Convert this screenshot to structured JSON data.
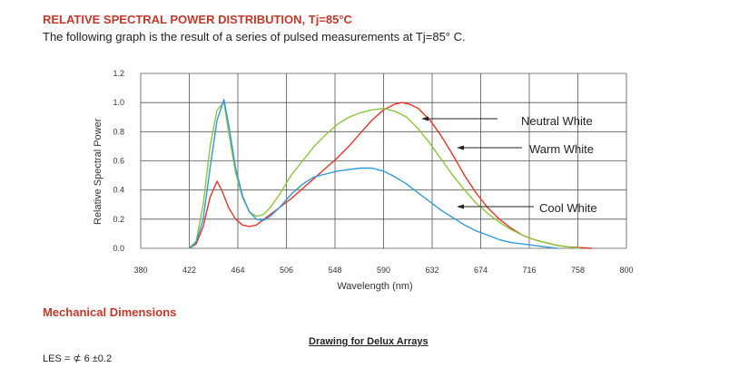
{
  "header": {
    "title": "RELATIVE SPECTRAL POWER DISTRIBUTION, Tj=85°C",
    "subtitle": "The following graph is the result of a series of pulsed measurements at Tj=85° C."
  },
  "footer": {
    "section_title": "Mechanical Dimensions",
    "drawing_label": "Drawing for Delux Arrays",
    "les_label": "LES = ⊄ 6 ±0.2"
  },
  "colors": {
    "neutral_white": "#e8352a",
    "warm_white": "#8cc63f",
    "cool_white": "#2e9bd8",
    "title_red": "#c0392b"
  },
  "chart_data": {
    "type": "line",
    "xlabel": "Wavelength (nm)",
    "ylabel": "Relative Spectral Power",
    "xlim": [
      380,
      800
    ],
    "ylim": [
      0.0,
      1.2
    ],
    "x_ticks": [
      "380",
      "422",
      "464",
      "506",
      "548",
      "590",
      "632",
      "674",
      "716",
      "758",
      "800"
    ],
    "y_ticks": [
      "0.0",
      "0.2",
      "0.4",
      "0.6",
      "0.8",
      "1.0",
      "1.2"
    ],
    "grid": true,
    "series": [
      {
        "name": "Neutral White",
        "color": "#e8352a",
        "points": [
          [
            422,
            0.0
          ],
          [
            428,
            0.03
          ],
          [
            434,
            0.15
          ],
          [
            440,
            0.35
          ],
          [
            446,
            0.46
          ],
          [
            450,
            0.4
          ],
          [
            456,
            0.28
          ],
          [
            462,
            0.2
          ],
          [
            468,
            0.16
          ],
          [
            474,
            0.15
          ],
          [
            480,
            0.16
          ],
          [
            490,
            0.22
          ],
          [
            500,
            0.28
          ],
          [
            510,
            0.34
          ],
          [
            520,
            0.41
          ],
          [
            530,
            0.48
          ],
          [
            540,
            0.55
          ],
          [
            550,
            0.62
          ],
          [
            560,
            0.7
          ],
          [
            570,
            0.79
          ],
          [
            580,
            0.88
          ],
          [
            590,
            0.95
          ],
          [
            600,
            0.99
          ],
          [
            606,
            1.0
          ],
          [
            612,
            0.99
          ],
          [
            620,
            0.96
          ],
          [
            630,
            0.88
          ],
          [
            640,
            0.77
          ],
          [
            650,
            0.64
          ],
          [
            660,
            0.5
          ],
          [
            670,
            0.38
          ],
          [
            680,
            0.28
          ],
          [
            690,
            0.2
          ],
          [
            700,
            0.14
          ],
          [
            710,
            0.09
          ],
          [
            720,
            0.06
          ],
          [
            730,
            0.04
          ],
          [
            740,
            0.02
          ],
          [
            750,
            0.01
          ],
          [
            760,
            0.005
          ],
          [
            770,
            0.0
          ]
        ]
      },
      {
        "name": "Warm White",
        "color": "#8cc63f",
        "points": [
          [
            422,
            0.0
          ],
          [
            428,
            0.05
          ],
          [
            434,
            0.3
          ],
          [
            440,
            0.7
          ],
          [
            446,
            0.95
          ],
          [
            452,
            1.0
          ],
          [
            456,
            0.8
          ],
          [
            462,
            0.52
          ],
          [
            468,
            0.35
          ],
          [
            474,
            0.25
          ],
          [
            480,
            0.22
          ],
          [
            486,
            0.23
          ],
          [
            492,
            0.28
          ],
          [
            500,
            0.37
          ],
          [
            510,
            0.5
          ],
          [
            520,
            0.6
          ],
          [
            530,
            0.7
          ],
          [
            540,
            0.78
          ],
          [
            550,
            0.85
          ],
          [
            560,
            0.9
          ],
          [
            570,
            0.93
          ],
          [
            580,
            0.95
          ],
          [
            590,
            0.96
          ],
          [
            600,
            0.94
          ],
          [
            610,
            0.9
          ],
          [
            620,
            0.82
          ],
          [
            630,
            0.72
          ],
          [
            640,
            0.61
          ],
          [
            650,
            0.5
          ],
          [
            660,
            0.4
          ],
          [
            670,
            0.31
          ],
          [
            680,
            0.24
          ],
          [
            690,
            0.18
          ],
          [
            700,
            0.13
          ],
          [
            710,
            0.09
          ],
          [
            720,
            0.06
          ],
          [
            730,
            0.04
          ],
          [
            740,
            0.02
          ],
          [
            750,
            0.01
          ],
          [
            760,
            0.0
          ]
        ]
      },
      {
        "name": "Cool White",
        "color": "#2e9bd8",
        "points": [
          [
            422,
            0.0
          ],
          [
            428,
            0.04
          ],
          [
            434,
            0.2
          ],
          [
            440,
            0.55
          ],
          [
            446,
            0.88
          ],
          [
            452,
            1.02
          ],
          [
            456,
            0.85
          ],
          [
            462,
            0.55
          ],
          [
            468,
            0.36
          ],
          [
            474,
            0.25
          ],
          [
            480,
            0.2
          ],
          [
            486,
            0.19
          ],
          [
            492,
            0.22
          ],
          [
            500,
            0.28
          ],
          [
            510,
            0.37
          ],
          [
            520,
            0.44
          ],
          [
            530,
            0.49
          ],
          [
            540,
            0.51
          ],
          [
            550,
            0.53
          ],
          [
            560,
            0.54
          ],
          [
            570,
            0.55
          ],
          [
            580,
            0.55
          ],
          [
            590,
            0.53
          ],
          [
            600,
            0.49
          ],
          [
            610,
            0.44
          ],
          [
            620,
            0.38
          ],
          [
            630,
            0.32
          ],
          [
            640,
            0.26
          ],
          [
            650,
            0.21
          ],
          [
            660,
            0.16
          ],
          [
            670,
            0.12
          ],
          [
            680,
            0.09
          ],
          [
            690,
            0.06
          ],
          [
            700,
            0.04
          ],
          [
            710,
            0.03
          ],
          [
            720,
            0.02
          ],
          [
            730,
            0.01
          ],
          [
            740,
            0.0
          ]
        ]
      }
    ]
  }
}
